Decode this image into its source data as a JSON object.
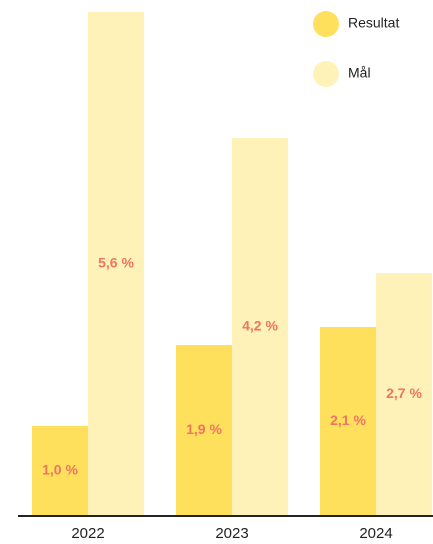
{
  "chart_data": {
    "type": "bar",
    "categories": [
      "2022",
      "2023",
      "2024"
    ],
    "series": [
      {
        "name": "Resultat",
        "color": "#ffe05c",
        "values": [
          1.0,
          1.9,
          2.1
        ],
        "value_labels": [
          "1,0 %",
          "1,9 %",
          "2,1 %"
        ]
      },
      {
        "name": "Mål",
        "color": "#fff2b8",
        "values": [
          5.6,
          4.2,
          2.7
        ],
        "value_labels": [
          "5,6 %",
          "4,2 %",
          "2,7 %"
        ]
      }
    ],
    "ylim": [
      0,
      5.6
    ],
    "legend": "top-right"
  }
}
